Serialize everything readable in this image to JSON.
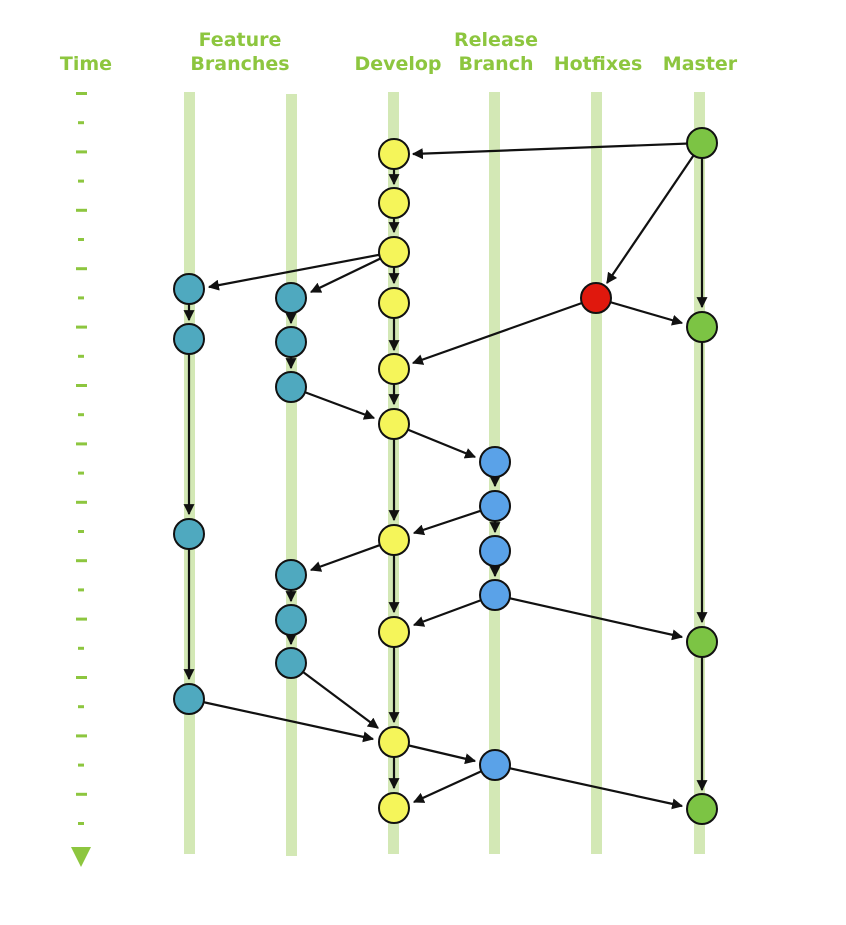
{
  "headers": {
    "time": "Time",
    "feature_line1": "Feature",
    "feature_line2": "Branches",
    "develop": "Develop",
    "release_line1": "Release",
    "release_line2": "Branch",
    "hotfixes": "Hotfixes",
    "master": "Master"
  },
  "colors": {
    "header_text": "#8dc63f",
    "lane": "#d3e8b5",
    "tick": "#8dc63f",
    "feature_node": "#4fa9bf",
    "develop_node": "#f5f55a",
    "release_node": "#5aa2e8",
    "hotfix_node": "#e0180d",
    "master_node": "#7cc444",
    "arrow": "#111111"
  },
  "icons": {
    "time_arrow": "triangle-down-icon"
  }
}
